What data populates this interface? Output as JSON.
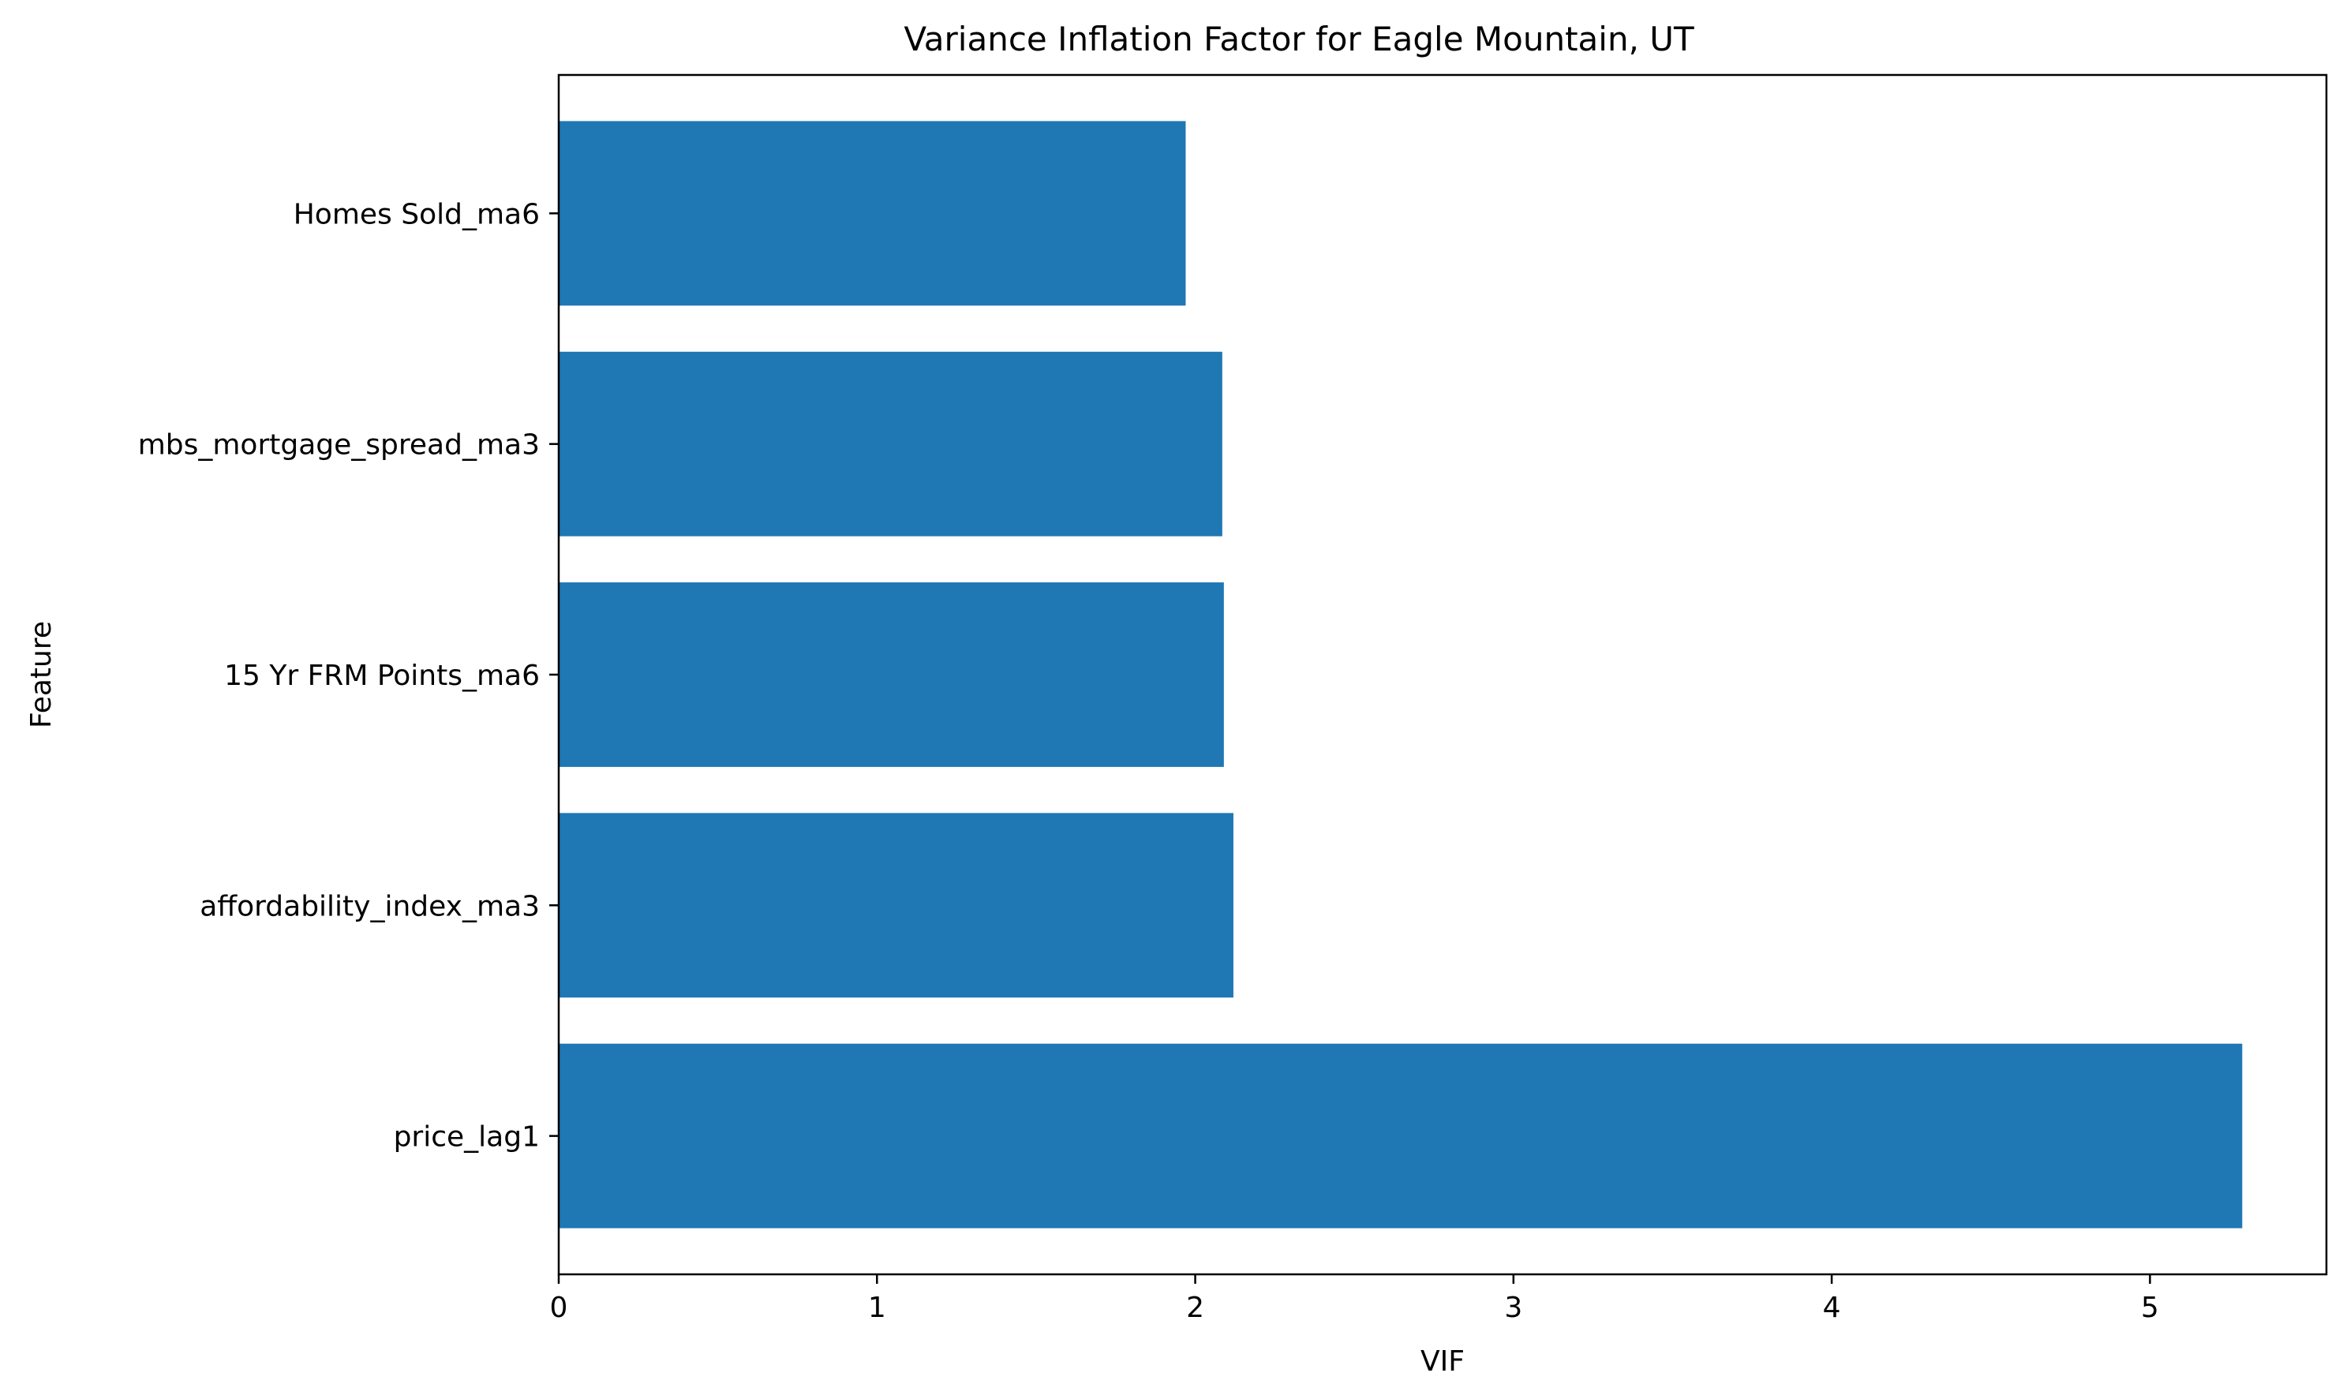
{
  "chart_data": {
    "type": "bar",
    "orientation": "horizontal",
    "title": "Variance Inflation Factor for Eagle Mountain, UT",
    "xlabel": "VIF",
    "ylabel": "Feature",
    "categories": [
      "price_lag1",
      "affordability_index_ma3",
      "15 Yr FRM Points_ma6",
      "mbs_mortgage_spread_ma3",
      "Homes Sold_ma6"
    ],
    "values": [
      5.29,
      2.12,
      2.09,
      2.085,
      1.97
    ],
    "xlim": [
      0,
      5.5545
    ],
    "xticks": [
      0,
      1,
      2,
      3,
      4,
      5
    ],
    "grid": false,
    "legend": "none",
    "bar_color": "#1f77b4"
  }
}
